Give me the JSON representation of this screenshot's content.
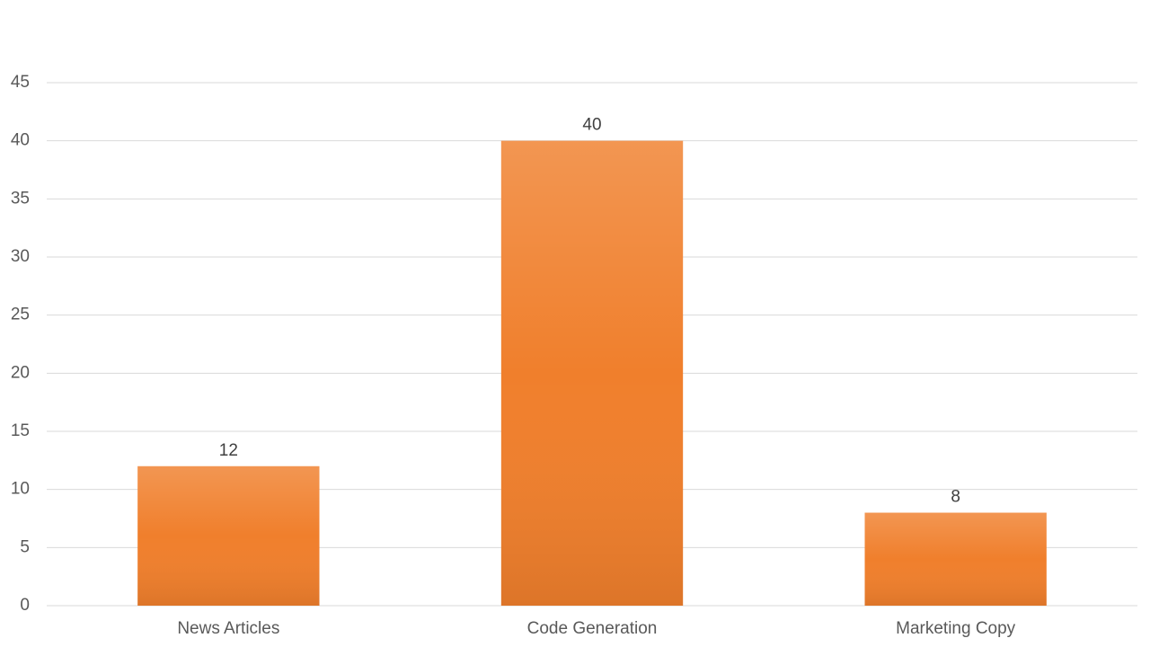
{
  "chart_data": {
    "type": "bar",
    "categories": [
      "News Articles",
      "Code Generation",
      "Marketing Copy"
    ],
    "values": [
      12,
      40,
      8
    ],
    "color": "#f07f2c",
    "ylim": [
      0,
      45
    ],
    "yticks": [
      0,
      5,
      10,
      15,
      20,
      25,
      30,
      35,
      40,
      45
    ],
    "grid": true,
    "data_labels": true
  }
}
